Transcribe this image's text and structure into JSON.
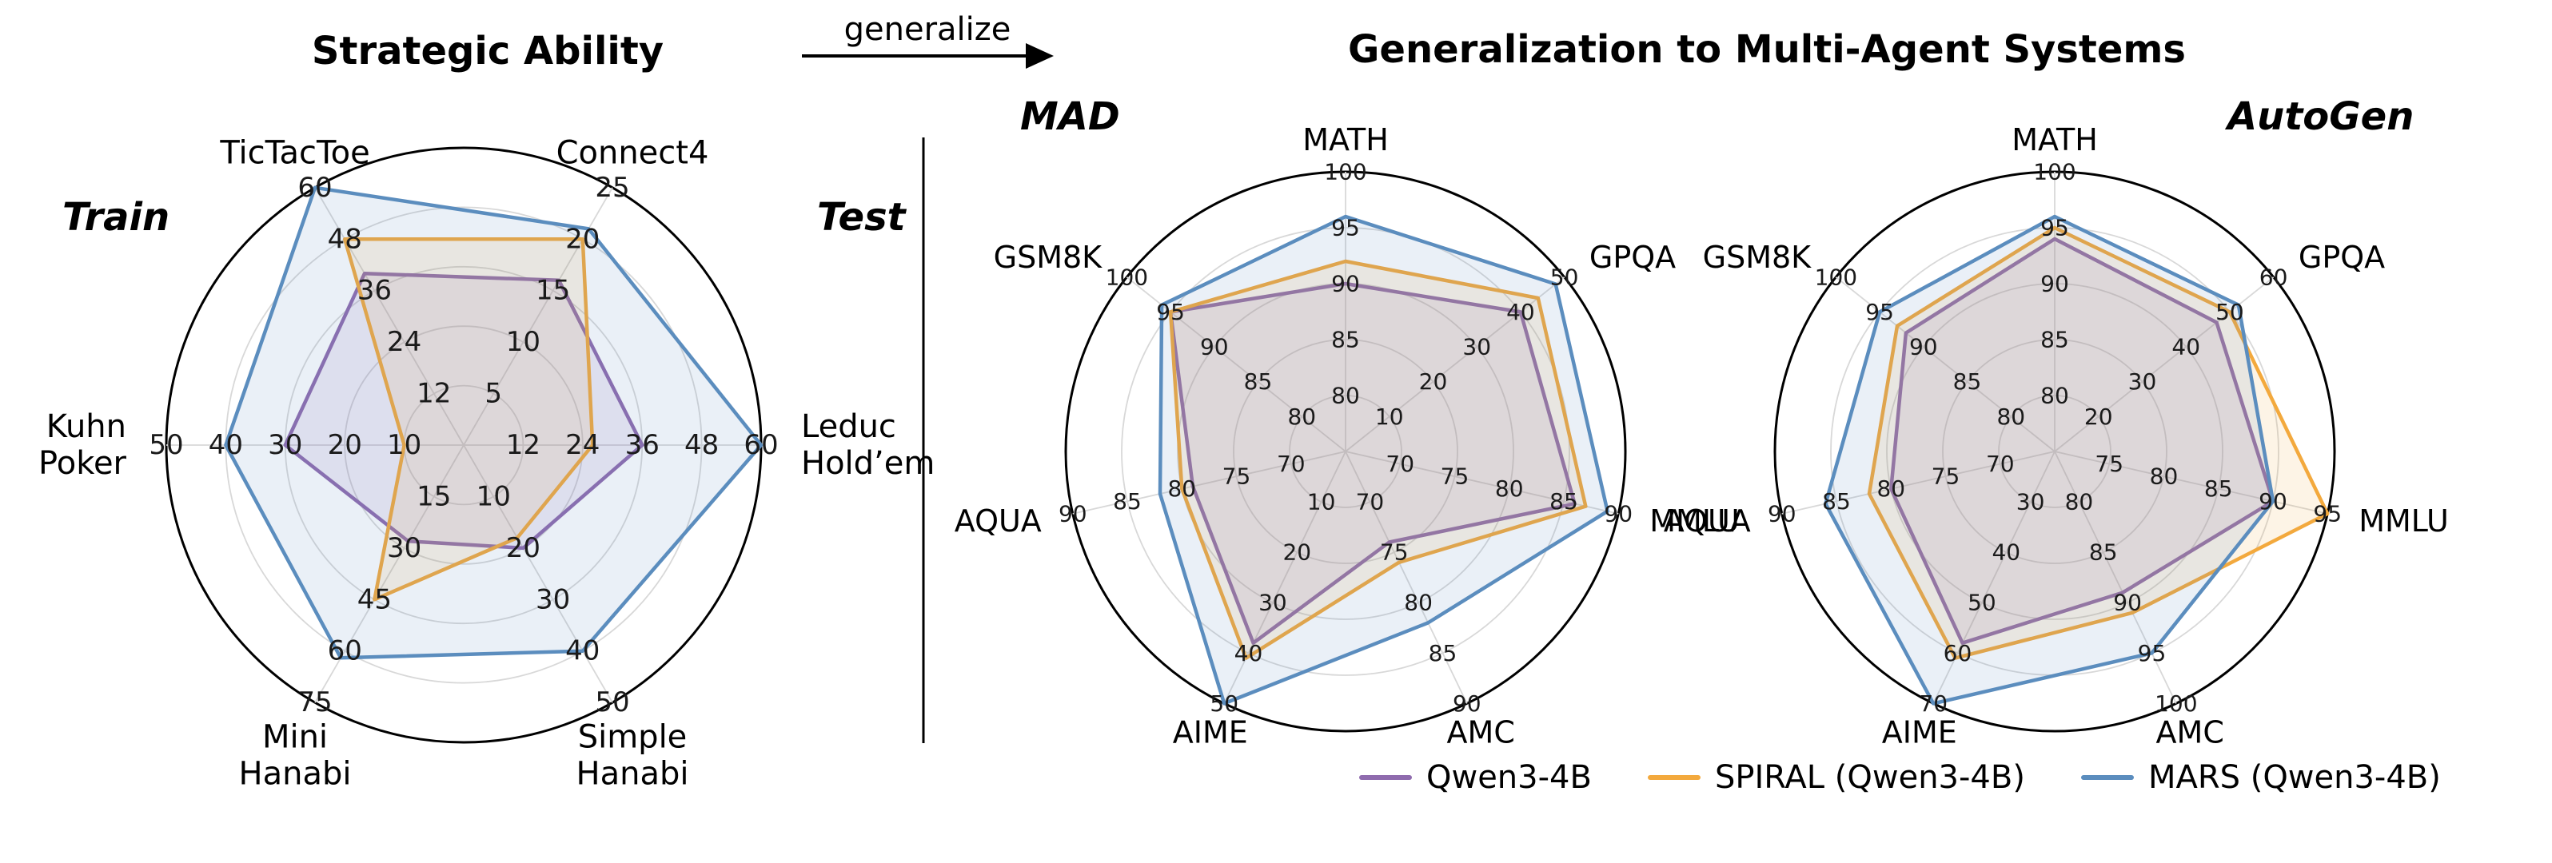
{
  "page": {
    "left_title": "Strategic Ability",
    "arrow_label": "generalize",
    "right_title": "Generalization to Multi-Agent Systems",
    "train_label": "Train",
    "test_label": "Test"
  },
  "legend": {
    "items": [
      {
        "name": "Qwen3-4B",
        "color": "#8f6bae"
      },
      {
        "name": "SPIRAL (Qwen3-4B)",
        "color": "#f3a93d"
      },
      {
        "name": "MARS (Qwen3-4B)",
        "color": "#5b8dbe"
      }
    ]
  },
  "chart_data": [
    {
      "type": "radar",
      "id": "strategic-ability",
      "title": "Strategic Ability",
      "rings": 5,
      "axes": [
        {
          "label_lines": [
            "TicTacToe"
          ],
          "angle": 120,
          "min": 0,
          "max": 60,
          "ticks": [
            12,
            24,
            36,
            48,
            60
          ]
        },
        {
          "label_lines": [
            "Connect4"
          ],
          "angle": 60,
          "min": 0,
          "max": 25,
          "ticks": [
            5,
            10,
            15,
            20,
            25
          ]
        },
        {
          "label_lines": [
            "Leduc",
            "Hold’em"
          ],
          "angle": 0,
          "min": 0,
          "max": 60,
          "ticks": [
            12,
            24,
            36,
            48,
            60
          ]
        },
        {
          "label_lines": [
            "Simple",
            "Hanabi"
          ],
          "angle": -60,
          "min": 0,
          "max": 50,
          "ticks": [
            10,
            20,
            30,
            40,
            50
          ]
        },
        {
          "label_lines": [
            "Mini",
            "Hanabi"
          ],
          "angle": -120,
          "min": 0,
          "max": 75,
          "ticks": [
            15,
            30,
            45,
            60,
            75
          ]
        },
        {
          "label_lines": [
            "Kuhn",
            "Poker"
          ],
          "angle": 180,
          "min": 0,
          "max": 50,
          "ticks": [
            10,
            20,
            30,
            40,
            50
          ]
        }
      ],
      "series": [
        {
          "name": "Qwen3-4B",
          "color": "#8f6bae",
          "values": [
            40,
            16,
            36,
            20,
            28,
            30
          ]
        },
        {
          "name": "SPIRAL (Qwen3-4B)",
          "color": "#f3a93d",
          "values": [
            48,
            20,
            26,
            18,
            45,
            10
          ]
        },
        {
          "name": "MARS (Qwen3-4B)",
          "color": "#5b8dbe",
          "values": [
            60,
            21,
            60,
            40,
            62,
            40
          ]
        }
      ]
    },
    {
      "type": "radar",
      "id": "mad",
      "title": "MAD",
      "rings": 5,
      "axes": [
        {
          "label_lines": [
            "MATH"
          ],
          "angle": 90,
          "min": 75,
          "max": 100,
          "ticks": [
            80,
            85,
            90,
            95,
            100
          ]
        },
        {
          "label_lines": [
            "GPQA"
          ],
          "angle": 38.57,
          "min": 0,
          "max": 50,
          "ticks": [
            10,
            20,
            30,
            40,
            50
          ]
        },
        {
          "label_lines": [
            "MMLU"
          ],
          "angle": -12.86,
          "min": 65,
          "max": 90,
          "ticks": [
            70,
            75,
            80,
            85,
            90
          ]
        },
        {
          "label_lines": [
            "AMC"
          ],
          "angle": -64.29,
          "min": 65,
          "max": 90,
          "ticks": [
            70,
            75,
            80,
            85,
            90
          ]
        },
        {
          "label_lines": [
            "AIME"
          ],
          "angle": -115.71,
          "min": 0,
          "max": 50,
          "ticks": [
            10,
            20,
            30,
            40,
            50
          ]
        },
        {
          "label_lines": [
            "AQUA"
          ],
          "angle": -167.14,
          "min": 65,
          "max": 90,
          "ticks": [
            70,
            75,
            80,
            85,
            90
          ]
        },
        {
          "label_lines": [
            "GSM8K"
          ],
          "angle": 141.43,
          "min": 75,
          "max": 100,
          "ticks": [
            80,
            85,
            90,
            95,
            100
          ]
        }
      ],
      "series": [
        {
          "name": "Qwen3-4B",
          "color": "#8f6bae",
          "values": [
            90,
            40,
            86,
            74,
            38,
            79,
            95
          ]
        },
        {
          "name": "SPIRAL (Qwen3-4B)",
          "color": "#f3a93d",
          "values": [
            92,
            44,
            87,
            76,
            41,
            80,
            95
          ]
        },
        {
          "name": "MARS (Qwen3-4B)",
          "color": "#5b8dbe",
          "values": [
            96,
            48,
            89,
            82,
            50,
            82,
            96
          ]
        }
      ]
    },
    {
      "type": "radar",
      "id": "autogen",
      "title": "AutoGen",
      "rings": 5,
      "axes": [
        {
          "label_lines": [
            "MATH"
          ],
          "angle": 90,
          "min": 75,
          "max": 100,
          "ticks": [
            80,
            85,
            90,
            95,
            100
          ]
        },
        {
          "label_lines": [
            "GPQA"
          ],
          "angle": 38.57,
          "min": 10,
          "max": 60,
          "ticks": [
            20,
            30,
            40,
            50,
            60
          ]
        },
        {
          "label_lines": [
            "MMLU"
          ],
          "angle": -12.86,
          "min": 70,
          "max": 95,
          "ticks": [
            75,
            80,
            85,
            90,
            95
          ]
        },
        {
          "label_lines": [
            "AMC"
          ],
          "angle": -64.29,
          "min": 75,
          "max": 100,
          "ticks": [
            80,
            85,
            90,
            95,
            100
          ]
        },
        {
          "label_lines": [
            "AIME"
          ],
          "angle": -115.71,
          "min": 20,
          "max": 70,
          "ticks": [
            30,
            40,
            50,
            60,
            70
          ]
        },
        {
          "label_lines": [
            "AQUA"
          ],
          "angle": -167.14,
          "min": 65,
          "max": 90,
          "ticks": [
            70,
            75,
            80,
            85,
            90
          ]
        },
        {
          "label_lines": [
            "GSM8K"
          ],
          "angle": 141.43,
          "min": 75,
          "max": 100,
          "ticks": [
            80,
            85,
            90,
            95,
            100
          ]
        }
      ],
      "series": [
        {
          "name": "Qwen3-4B",
          "color": "#8f6bae",
          "values": [
            94,
            47,
            90,
            89,
            58,
            80,
            92
          ]
        },
        {
          "name": "SPIRAL (Qwen3-4B)",
          "color": "#f3a93d",
          "values": [
            95,
            50,
            95,
            91,
            61,
            82,
            93
          ]
        },
        {
          "name": "MARS (Qwen3-4B)",
          "color": "#5b8dbe",
          "values": [
            96,
            52,
            90,
            95,
            70,
            86,
            95
          ]
        }
      ]
    }
  ]
}
